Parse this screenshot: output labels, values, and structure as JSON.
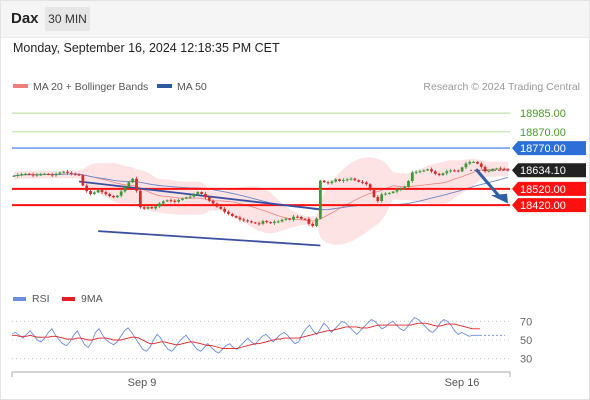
{
  "header": {
    "symbol": "Dax",
    "timeframe": "30 MIN",
    "timestamp": "Monday, September 16, 2024 12:18:35 PM CET",
    "credit": "Research © 2024 Trading Central"
  },
  "chart_data": [
    {
      "type": "candlestick",
      "instrument": "Dax",
      "interval": "30 MIN",
      "legend": [
        {
          "name": "MA 20 + Bollinger Bands",
          "color": "#f08080"
        },
        {
          "name": "MA 50",
          "color": "#2d5a9e"
        }
      ],
      "x_tick_labels": [
        "Sep 9",
        "Sep 16"
      ],
      "ylim": [
        17960,
        19090
      ],
      "levels": [
        {
          "label": "18985.00",
          "value": 18985,
          "color": "#4caf50",
          "style": "resistance"
        },
        {
          "label": "18870.00",
          "value": 18870,
          "color": "#4caf50",
          "style": "resistance"
        },
        {
          "label": "18770.00",
          "value": 18770,
          "color": "#2c6fd6",
          "style": "pivot"
        },
        {
          "label": "18634.10",
          "value": 18634.1,
          "color": "#222222",
          "style": "last-price"
        },
        {
          "label": "18520.00",
          "value": 18520,
          "color": "#ff1010",
          "style": "support"
        },
        {
          "label": "18420.00",
          "value": 18420,
          "color": "#ff1010",
          "style": "support"
        }
      ],
      "close": [
        18600,
        18605,
        18610,
        18612,
        18608,
        18603,
        18607,
        18610,
        18612,
        18608,
        18603,
        18612,
        18620,
        18625,
        18618,
        18612,
        18608,
        18605,
        18540,
        18506,
        18488,
        18498,
        18512,
        18500,
        18488,
        18476,
        18468,
        18478,
        18504,
        18532,
        18560,
        18582,
        18508,
        18407,
        18398,
        18408,
        18400,
        18412,
        18430,
        18443,
        18450,
        18447,
        18440,
        18452,
        18460,
        18468,
        18472,
        18487,
        18500,
        18489,
        18468,
        18447,
        18430,
        18410,
        18397,
        18379,
        18366,
        18353,
        18343,
        18332,
        18326,
        18320,
        18314,
        18308,
        18305,
        18322,
        18315,
        18310,
        18318,
        18320,
        18330,
        18337,
        18330,
        18349,
        18347,
        18336,
        18335,
        18305,
        18292,
        18337,
        18570,
        18560,
        18555,
        18565,
        18578,
        18568,
        18574,
        18578,
        18583,
        18573,
        18563,
        18559,
        18548,
        18512,
        18469,
        18445,
        18486,
        18491,
        18494,
        18503,
        18514,
        18521,
        18532,
        18568,
        18620,
        18624,
        18628,
        18633,
        18640,
        18627,
        18612,
        18604,
        18615,
        18627,
        18633,
        18632,
        18627,
        18652,
        18675,
        18685,
        18685,
        18675,
        18655,
        18628,
        18631,
        18640,
        18645,
        18642,
        18640,
        18634
      ]
    },
    {
      "type": "line",
      "title": "",
      "series": [
        {
          "name": "RSI",
          "color": "#6b8ee0"
        },
        {
          "name": "9MA",
          "color": "#e02020"
        }
      ],
      "y_tick_labels": [
        "70",
        "50",
        "30"
      ],
      "ylim": [
        20,
        80
      ],
      "rsi": [
        57,
        58,
        55,
        52,
        56,
        60,
        55,
        50,
        48,
        52,
        58,
        62,
        55,
        50,
        46,
        44,
        48,
        55,
        60,
        52,
        45,
        42,
        48,
        58,
        62,
        55,
        50,
        47,
        45,
        48,
        54,
        60,
        63,
        58,
        52,
        46,
        40,
        38,
        42,
        50,
        56,
        52,
        45,
        40,
        38,
        42,
        48,
        52,
        55,
        50,
        45,
        40,
        38,
        42,
        46,
        42,
        38,
        36,
        40,
        44,
        46,
        42,
        40,
        44,
        48,
        52,
        48,
        45,
        50,
        54,
        56,
        52,
        48,
        52,
        56,
        58,
        55,
        50,
        46,
        48,
        56,
        62,
        66,
        60,
        56,
        62,
        68,
        64,
        58,
        62,
        66,
        70,
        68,
        64,
        60,
        56,
        60,
        64,
        68,
        72,
        70,
        66,
        62,
        64,
        68,
        70,
        66,
        62,
        60,
        64,
        70,
        74,
        72,
        68,
        64,
        60,
        58,
        62,
        68,
        72,
        70,
        66,
        60,
        56,
        58,
        56,
        54,
        55,
        55,
        55
      ],
      "ma9": [
        55,
        55,
        54,
        54,
        54,
        55,
        54,
        53,
        53,
        53,
        53,
        54,
        54,
        53,
        52,
        51,
        51,
        51,
        52,
        52,
        51,
        50,
        50,
        51,
        52,
        52,
        52,
        51,
        50,
        50,
        50,
        51,
        52,
        53,
        53,
        52,
        50,
        48,
        46,
        46,
        47,
        48,
        48,
        47,
        46,
        45,
        45,
        46,
        47,
        48,
        48,
        47,
        46,
        45,
        44,
        44,
        43,
        42,
        41,
        41,
        41,
        41,
        41,
        42,
        43,
        44,
        45,
        46,
        46,
        47,
        48,
        49,
        50,
        51,
        51,
        52,
        52,
        52,
        52,
        52,
        53,
        54,
        55,
        56,
        57,
        58,
        59,
        60,
        60,
        61,
        62,
        63,
        64,
        64,
        64,
        64,
        63,
        63,
        63,
        64,
        65,
        66,
        66,
        66,
        66,
        66,
        66,
        66,
        66,
        66,
        66,
        67,
        68,
        68,
        68,
        67,
        66,
        65,
        65,
        66,
        67,
        67,
        67,
        66,
        65,
        64,
        63,
        62,
        62,
        62
      ]
    }
  ]
}
